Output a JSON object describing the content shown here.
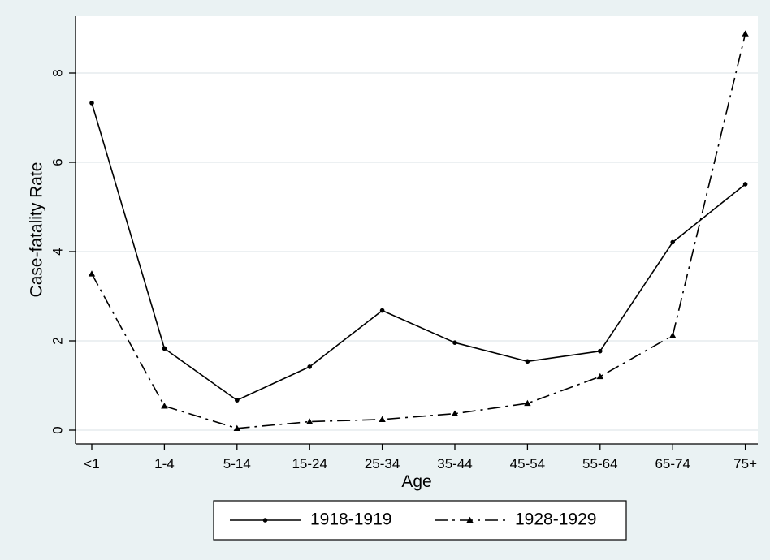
{
  "chart_data": {
    "type": "line",
    "title": "",
    "xlabel": "Age",
    "ylabel": "Case-fatality Rate",
    "categories": [
      "<1",
      "1-4",
      "5-14",
      "15-24",
      "25-34",
      "35-44",
      "45-54",
      "55-64",
      "65-74",
      "75+"
    ],
    "y_ticks": [
      "0",
      "2",
      "4",
      "6",
      "8"
    ],
    "ylim": [
      -0.3,
      9.2
    ],
    "grid": true,
    "legend_position": "bottom",
    "series": [
      {
        "name": "1918-1919",
        "line_style": "solid",
        "marker": "circle",
        "values": [
          7.33,
          1.83,
          0.67,
          1.42,
          2.68,
          1.96,
          1.54,
          1.77,
          4.21,
          5.51
        ]
      },
      {
        "name": "1928-1929",
        "line_style": "dash-dot",
        "marker": "triangle",
        "values": [
          3.5,
          0.54,
          0.04,
          0.19,
          0.24,
          0.37,
          0.6,
          1.2,
          2.12,
          8.88
        ]
      }
    ],
    "colors": {
      "background": "#eaf2f3",
      "plot_background": "#ffffff",
      "grid": "#e5ecee",
      "line": "#000000"
    }
  }
}
